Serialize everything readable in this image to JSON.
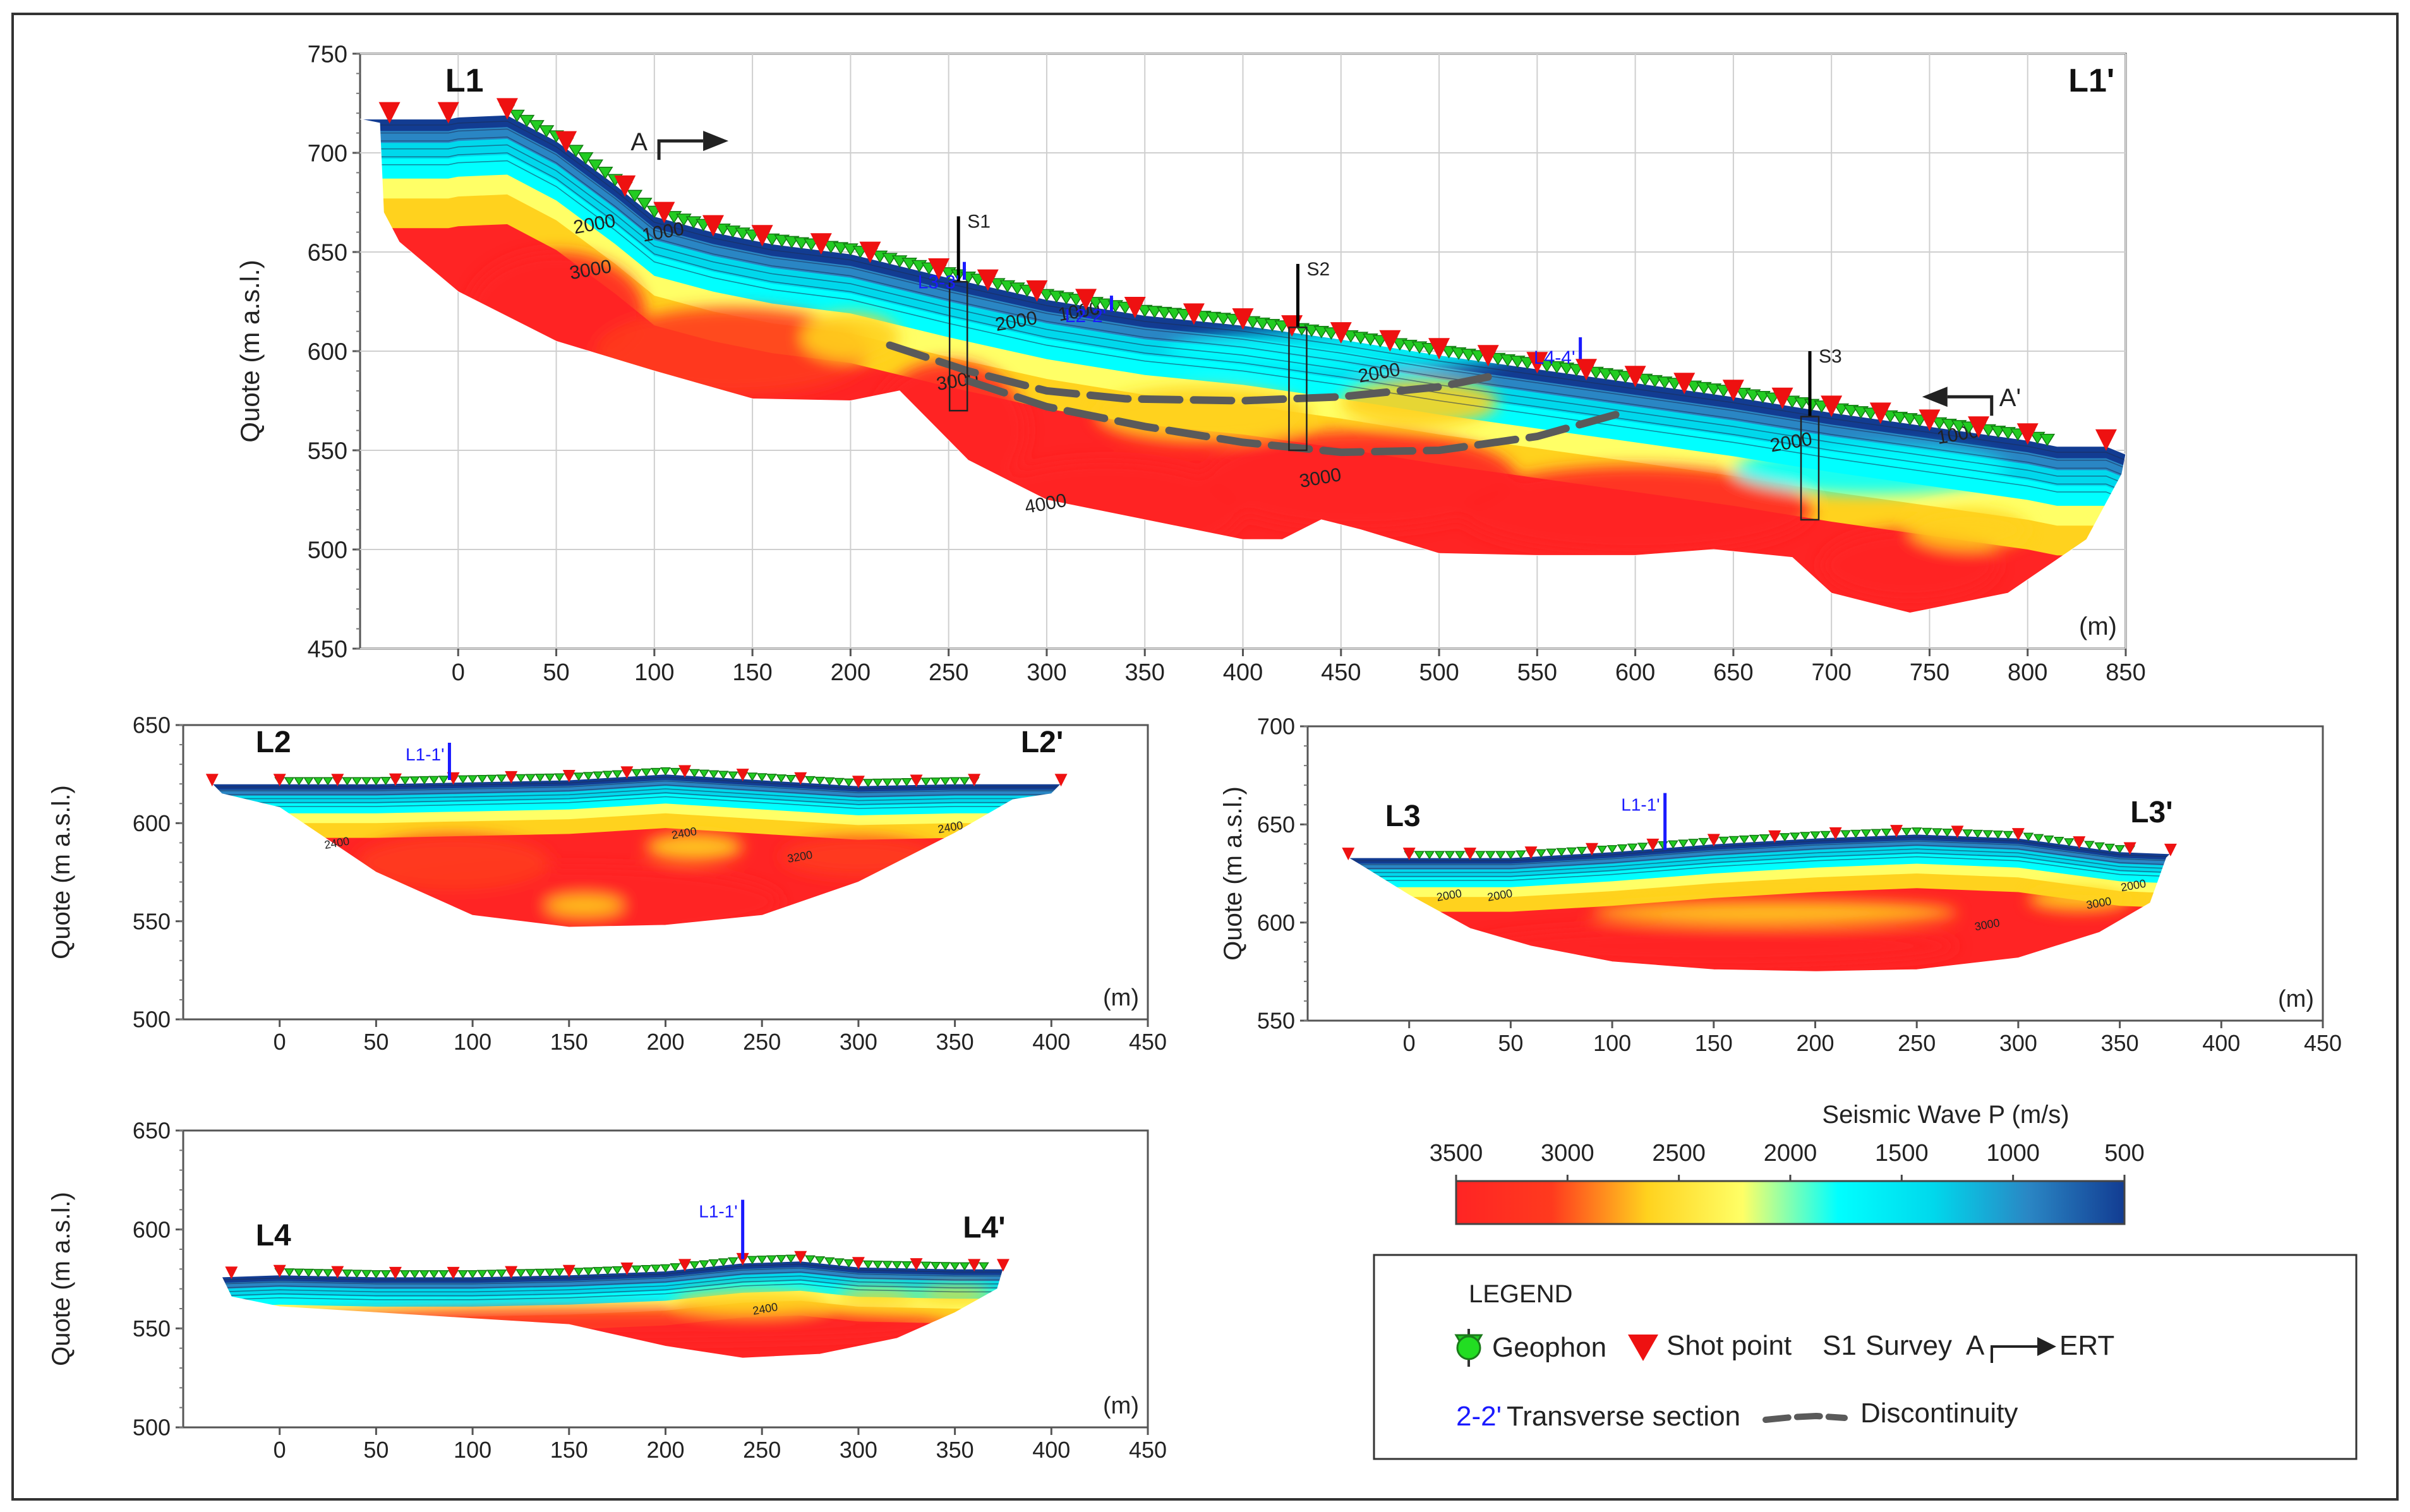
{
  "colors": {
    "frame": "#333333",
    "grid": "#cfcfcf",
    "axis": "#555555",
    "text": "#222222",
    "transverse": "#1a1aff",
    "survey": "#000000",
    "geophon": "#22cc22",
    "shot": "#ee1111",
    "discontinuity": "#5a5a5a",
    "velocity_ramp": [
      "#ff2424",
      "#ff3a1e",
      "#ffd21e",
      "#ffff66",
      "#00ffff",
      "#00d8ec",
      "#2a86c4",
      "#123c92"
    ]
  },
  "chart_data": [
    {
      "id": "L1",
      "type": "heatmap",
      "title": "",
      "start_label": "L1",
      "end_label": "L1'",
      "xlabel": "",
      "ylabel": "Quote (m a.s.l.)",
      "x_unit": "(m)",
      "xlim": [
        -50,
        850
      ],
      "ylim": [
        450,
        750
      ],
      "xticks": [
        0,
        50,
        100,
        150,
        200,
        250,
        300,
        350,
        400,
        450,
        500,
        550,
        600,
        650,
        700,
        750,
        800,
        850
      ],
      "yticks": [
        450,
        500,
        550,
        600,
        650,
        700,
        750
      ],
      "grid": true,
      "surface": [
        [
          -50,
          717
        ],
        [
          -5,
          717
        ],
        [
          0,
          718
        ],
        [
          25,
          719
        ],
        [
          50,
          706
        ],
        [
          80,
          684
        ],
        [
          100,
          668
        ],
        [
          130,
          660
        ],
        [
          160,
          654
        ],
        [
          200,
          649
        ],
        [
          250,
          637
        ],
        [
          300,
          626
        ],
        [
          350,
          618
        ],
        [
          400,
          613
        ],
        [
          450,
          606
        ],
        [
          500,
          598
        ],
        [
          550,
          591
        ],
        [
          600,
          584
        ],
        [
          650,
          577
        ],
        [
          700,
          569
        ],
        [
          750,
          562
        ],
        [
          800,
          555
        ],
        [
          815,
          552
        ],
        [
          840,
          552
        ],
        [
          850,
          548
        ]
      ],
      "base": [
        [
          -40,
          715
        ],
        [
          -38,
          670
        ],
        [
          -30,
          655
        ],
        [
          0,
          630
        ],
        [
          50,
          605
        ],
        [
          100,
          590
        ],
        [
          150,
          576
        ],
        [
          200,
          575
        ],
        [
          225,
          580
        ],
        [
          235,
          570
        ],
        [
          260,
          545
        ],
        [
          300,
          525
        ],
        [
          350,
          515
        ],
        [
          400,
          505
        ],
        [
          420,
          505
        ],
        [
          440,
          515
        ],
        [
          460,
          510
        ],
        [
          500,
          498
        ],
        [
          550,
          497
        ],
        [
          600,
          497
        ],
        [
          640,
          500
        ],
        [
          680,
          496
        ],
        [
          700,
          478
        ],
        [
          740,
          468
        ],
        [
          790,
          478
        ],
        [
          830,
          505
        ],
        [
          848,
          538
        ]
      ],
      "velocity_field": [
        {
          "x": 50,
          "y": 620,
          "v": 3300,
          "rx": 45,
          "ry": 30
        },
        {
          "x": 140,
          "y": 600,
          "v": 3200,
          "rx": 70,
          "ry": 22
        },
        {
          "x": 250,
          "y": 560,
          "v": 3300,
          "rx": 40,
          "ry": 35
        },
        {
          "x": 330,
          "y": 520,
          "v": 3300,
          "rx": 70,
          "ry": 25
        },
        {
          "x": 460,
          "y": 535,
          "v": 3300,
          "rx": 80,
          "ry": 25
        },
        {
          "x": 600,
          "y": 520,
          "v": 3300,
          "rx": 90,
          "ry": 22
        },
        {
          "x": 740,
          "y": 492,
          "v": 3300,
          "rx": 45,
          "ry": 18
        },
        {
          "x": 200,
          "y": 607,
          "v": 2700,
          "rx": 25,
          "ry": 12
        },
        {
          "x": 380,
          "y": 568,
          "v": 2500,
          "rx": 55,
          "ry": 14
        },
        {
          "x": 490,
          "y": 574,
          "v": 2500,
          "rx": 40,
          "ry": 12
        },
        {
          "x": 770,
          "y": 510,
          "v": 2500,
          "rx": 30,
          "ry": 10
        },
        {
          "x": 450,
          "y": 600,
          "v": 1900,
          "rx": 90,
          "ry": 10
        },
        {
          "x": 720,
          "y": 540,
          "v": 1900,
          "rx": 70,
          "ry": 12
        }
      ],
      "contour_labels": [
        {
          "x": 105,
          "y": 657,
          "text": "1000"
        },
        {
          "x": 70,
          "y": 661,
          "text": "2000"
        },
        {
          "x": 68,
          "y": 638,
          "text": "3000"
        },
        {
          "x": 285,
          "y": 612,
          "text": "2000"
        },
        {
          "x": 317,
          "y": 617,
          "text": "1000"
        },
        {
          "x": 255,
          "y": 582,
          "text": "3000"
        },
        {
          "x": 300,
          "y": 520,
          "text": "4000"
        },
        {
          "x": 440,
          "y": 533,
          "text": "3000"
        },
        {
          "x": 470,
          "y": 586,
          "text": "2000"
        },
        {
          "x": 680,
          "y": 551,
          "text": "2000"
        },
        {
          "x": 765,
          "y": 555,
          "text": "1000"
        }
      ],
      "geophones": {
        "from": 25,
        "to": 810,
        "step": 5
      },
      "shot_points": [
        -35,
        -5,
        25,
        55,
        85,
        105,
        130,
        155,
        185,
        210,
        245,
        270,
        295,
        320,
        345,
        375,
        400,
        425,
        450,
        475,
        500,
        525,
        550,
        575,
        600,
        625,
        650,
        675,
        700,
        725,
        750,
        775,
        800,
        840
      ],
      "surveys": [
        {
          "name": "S1",
          "x": 255,
          "top": 668,
          "box_top": 635,
          "box_bottom": 570
        },
        {
          "name": "S2",
          "x": 428,
          "top": 644,
          "box_top": 612,
          "box_bottom": 550
        },
        {
          "name": "S3",
          "x": 689,
          "top": 600,
          "box_top": 567,
          "box_bottom": 515
        }
      ],
      "transverse": [
        {
          "name": "L3-3'",
          "x": 258,
          "top": 645,
          "bottom": 636
        },
        {
          "name": "L2-2'",
          "x": 333,
          "top": 628,
          "bottom": 620
        },
        {
          "name": "L4-4'",
          "x": 572,
          "top": 607,
          "bottom": 596
        }
      ],
      "ert": [
        {
          "label": "A",
          "x": 112,
          "y": 706,
          "dir": "right"
        },
        {
          "label": "A'",
          "x": 772,
          "y": 577,
          "dir": "left"
        }
      ],
      "discontinuities": [
        [
          [
            220,
            603
          ],
          [
            260,
            590
          ],
          [
            300,
            580
          ],
          [
            340,
            576
          ],
          [
            400,
            575
          ],
          [
            450,
            577
          ],
          [
            500,
            582
          ],
          [
            525,
            587
          ]
        ],
        [
          [
            260,
            585
          ],
          [
            300,
            572
          ],
          [
            350,
            562
          ],
          [
            400,
            554
          ],
          [
            450,
            549
          ],
          [
            500,
            550
          ],
          [
            550,
            557
          ],
          [
            590,
            568
          ]
        ]
      ]
    },
    {
      "id": "L2",
      "type": "heatmap",
      "title": "",
      "start_label": "L2",
      "end_label": "L2'",
      "xlabel": "",
      "ylabel": "Quote (m a.s.l.)",
      "x_unit": "(m)",
      "xlim": [
        -50,
        450
      ],
      "ylim": [
        500,
        650
      ],
      "xticks": [
        0,
        50,
        100,
        150,
        200,
        250,
        300,
        350,
        400,
        450
      ],
      "yticks": [
        500,
        550,
        600,
        650
      ],
      "grid": false,
      "surface": [
        [
          -35,
          620
        ],
        [
          0,
          620
        ],
        [
          50,
          620
        ],
        [
          100,
          621
        ],
        [
          150,
          622
        ],
        [
          200,
          625
        ],
        [
          250,
          622
        ],
        [
          300,
          619
        ],
        [
          350,
          620
        ],
        [
          360,
          620
        ],
        [
          405,
          620
        ]
      ],
      "base": [
        [
          -30,
          615
        ],
        [
          0,
          608
        ],
        [
          50,
          575
        ],
        [
          100,
          553
        ],
        [
          150,
          547
        ],
        [
          200,
          548
        ],
        [
          250,
          553
        ],
        [
          300,
          570
        ],
        [
          350,
          595
        ],
        [
          380,
          612
        ],
        [
          400,
          615
        ]
      ],
      "velocity_field": [
        {
          "x": 150,
          "y": 560,
          "v": 3300,
          "rx": 110,
          "ry": 18
        },
        {
          "x": 215,
          "y": 588,
          "v": 2500,
          "rx": 25,
          "ry": 7
        },
        {
          "x": 158,
          "y": 558,
          "v": 2600,
          "rx": 20,
          "ry": 5
        },
        {
          "x": 90,
          "y": 580,
          "v": 3000,
          "rx": 50,
          "ry": 14
        },
        {
          "x": 300,
          "y": 583,
          "v": 2900,
          "rx": 40,
          "ry": 10
        }
      ],
      "contour_labels": [
        {
          "x": 30,
          "y": 588,
          "text": "2400"
        },
        {
          "x": 210,
          "y": 593,
          "text": "2400"
        },
        {
          "x": 270,
          "y": 581,
          "text": "3200"
        },
        {
          "x": 348,
          "y": 596,
          "text": "2400"
        }
      ],
      "geophones": {
        "from": 0,
        "to": 360,
        "step": 5
      },
      "shot_points": [
        -35,
        0,
        30,
        60,
        90,
        120,
        150,
        180,
        210,
        240,
        270,
        300,
        330,
        360,
        405
      ],
      "surveys": [],
      "transverse": [
        {
          "name": "L1-1'",
          "x": 88,
          "top": 641,
          "bottom": 622
        }
      ],
      "ert": [],
      "discontinuities": []
    },
    {
      "id": "L3",
      "type": "heatmap",
      "title": "",
      "start_label": "L3",
      "end_label": "L3'",
      "xlabel": "",
      "ylabel": "Quote (m a.s.l.)",
      "x_unit": "(m)",
      "xlim": [
        -50,
        450
      ],
      "ylim": [
        550,
        700
      ],
      "xticks": [
        0,
        50,
        100,
        150,
        200,
        250,
        300,
        350,
        400,
        450
      ],
      "yticks": [
        550,
        600,
        650,
        700
      ],
      "grid": false,
      "surface": [
        [
          -30,
          633
        ],
        [
          0,
          633
        ],
        [
          50,
          633
        ],
        [
          100,
          636
        ],
        [
          150,
          640
        ],
        [
          200,
          643
        ],
        [
          250,
          645
        ],
        [
          300,
          643
        ],
        [
          350,
          636
        ],
        [
          375,
          635
        ]
      ],
      "base": [
        [
          -25,
          630
        ],
        [
          0,
          614
        ],
        [
          30,
          597
        ],
        [
          60,
          588
        ],
        [
          100,
          580
        ],
        [
          150,
          576
        ],
        [
          200,
          575
        ],
        [
          250,
          576
        ],
        [
          300,
          582
        ],
        [
          340,
          595
        ],
        [
          365,
          610
        ],
        [
          373,
          633
        ]
      ],
      "velocity_field": [
        {
          "x": 150,
          "y": 588,
          "v": 3300,
          "rx": 120,
          "ry": 10
        },
        {
          "x": 180,
          "y": 605,
          "v": 2600,
          "rx": 90,
          "ry": 6
        },
        {
          "x": 330,
          "y": 612,
          "v": 2500,
          "rx": 25,
          "ry": 6
        }
      ],
      "contour_labels": [
        {
          "x": 20,
          "y": 612,
          "text": "2000"
        },
        {
          "x": 45,
          "y": 612,
          "text": "2000"
        },
        {
          "x": 285,
          "y": 597,
          "text": "3000"
        },
        {
          "x": 340,
          "y": 608,
          "text": "3000"
        },
        {
          "x": 357,
          "y": 617,
          "text": "2000"
        }
      ],
      "geophones": {
        "from": 0,
        "to": 355,
        "step": 5
      },
      "shot_points": [
        -30,
        0,
        30,
        60,
        90,
        120,
        150,
        180,
        210,
        240,
        270,
        300,
        330,
        355,
        375
      ],
      "surveys": [],
      "transverse": [
        {
          "name": "L1-1'",
          "x": 126,
          "top": 666,
          "bottom": 637
        }
      ],
      "ert": [],
      "discontinuities": []
    },
    {
      "id": "L4",
      "type": "heatmap",
      "title": "",
      "start_label": "L4",
      "end_label": "L4'",
      "xlabel": "",
      "ylabel": "Quote (m a.s.l.)",
      "x_unit": "(m)",
      "xlim": [
        -50,
        450
      ],
      "ylim": [
        500,
        650
      ],
      "xticks": [
        0,
        50,
        100,
        150,
        200,
        250,
        300,
        350,
        400,
        450
      ],
      "yticks": [
        500,
        550,
        600,
        650
      ],
      "grid": false,
      "surface": [
        [
          -30,
          576
        ],
        [
          0,
          577
        ],
        [
          50,
          576
        ],
        [
          100,
          576
        ],
        [
          150,
          577
        ],
        [
          200,
          579
        ],
        [
          240,
          583
        ],
        [
          270,
          584
        ],
        [
          300,
          581
        ],
        [
          350,
          580
        ],
        [
          375,
          580
        ]
      ],
      "base": [
        [
          -25,
          566
        ],
        [
          0,
          561
        ],
        [
          50,
          558
        ],
        [
          100,
          555
        ],
        [
          150,
          552
        ],
        [
          200,
          541
        ],
        [
          240,
          535
        ],
        [
          280,
          537
        ],
        [
          320,
          545
        ],
        [
          350,
          558
        ],
        [
          372,
          570
        ]
      ],
      "velocity_field": [
        {
          "x": 170,
          "y": 552,
          "v": 3300,
          "rx": 180,
          "ry": 8
        },
        {
          "x": 245,
          "y": 563,
          "v": 2500,
          "rx": 40,
          "ry": 6
        },
        {
          "x": 310,
          "y": 566,
          "v": 2600,
          "rx": 22,
          "ry": 4
        },
        {
          "x": 350,
          "y": 567,
          "v": 2600,
          "rx": 20,
          "ry": 4
        }
      ],
      "contour_labels": [
        {
          "x": 252,
          "y": 558,
          "text": "2400"
        }
      ],
      "geophones": {
        "from": 0,
        "to": 365,
        "step": 5
      },
      "shot_points": [
        -25,
        0,
        30,
        60,
        90,
        120,
        150,
        180,
        210,
        240,
        270,
        300,
        330,
        360,
        375
      ],
      "surveys": [],
      "transverse": [
        {
          "name": "L1-1'",
          "x": 240,
          "top": 615,
          "bottom": 585
        }
      ],
      "ert": [],
      "discontinuities": []
    }
  ],
  "colorbar": {
    "title": "Seismic Wave P (m/s)",
    "ticks": [
      3500,
      3000,
      2500,
      2000,
      1500,
      1000,
      500
    ],
    "tick_labels": [
      "3500",
      "3000",
      "2500",
      "2000",
      "1500",
      "1000",
      "500"
    ],
    "range": [
      3500,
      500
    ]
  },
  "legend": {
    "title": "LEGEND",
    "geophon": "Geophon",
    "shot": "Shot point",
    "survey_code": "S1",
    "survey": "Survey",
    "ert_code": "A",
    "ert": "ERT",
    "transverse_code": "2-2'",
    "transverse": "Transverse section",
    "discontinuity": "Discontinuity"
  }
}
